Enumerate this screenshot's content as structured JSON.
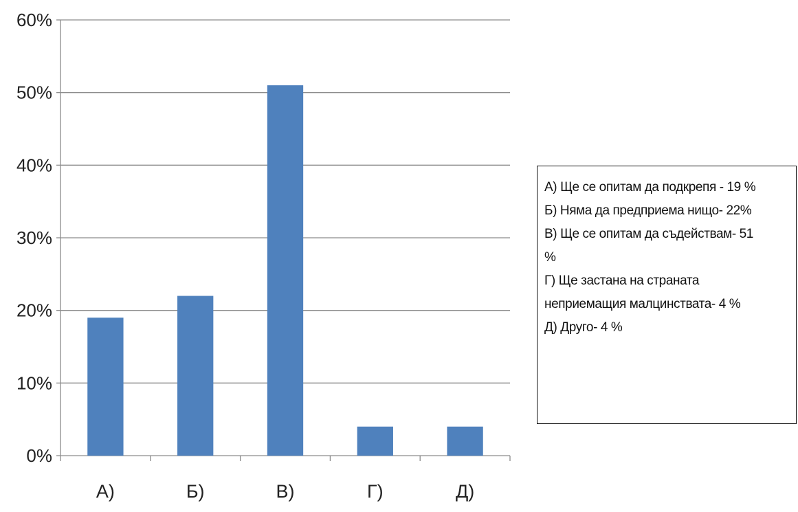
{
  "chart_data": {
    "type": "bar",
    "title": "",
    "xlabel": "",
    "ylabel": "",
    "categories": [
      "А)",
      "Б)",
      "В)",
      "Г)",
      "Д)"
    ],
    "values": [
      19,
      22,
      51,
      4,
      4
    ],
    "unit": "%",
    "ylim": [
      0,
      60
    ],
    "yticks": [
      "0%",
      "10%",
      "20%",
      "30%",
      "40%",
      "50%",
      "60%"
    ],
    "ytick_values": [
      0,
      10,
      20,
      30,
      40,
      50,
      60
    ],
    "grid": true,
    "bar_color": "#4F81BD",
    "legend_placement": "right",
    "legend": [
      "А) Ще се опитам да подкрепя - 19 %",
      "Б) Няма да предприема нищо- 22%",
      "В) Ще се опитам да съдействам- 51",
      "%",
      "Г) Ще застана на страната",
      "неприемащия малцинствата- 4 %",
      "Д) Друго- 4 %"
    ]
  }
}
